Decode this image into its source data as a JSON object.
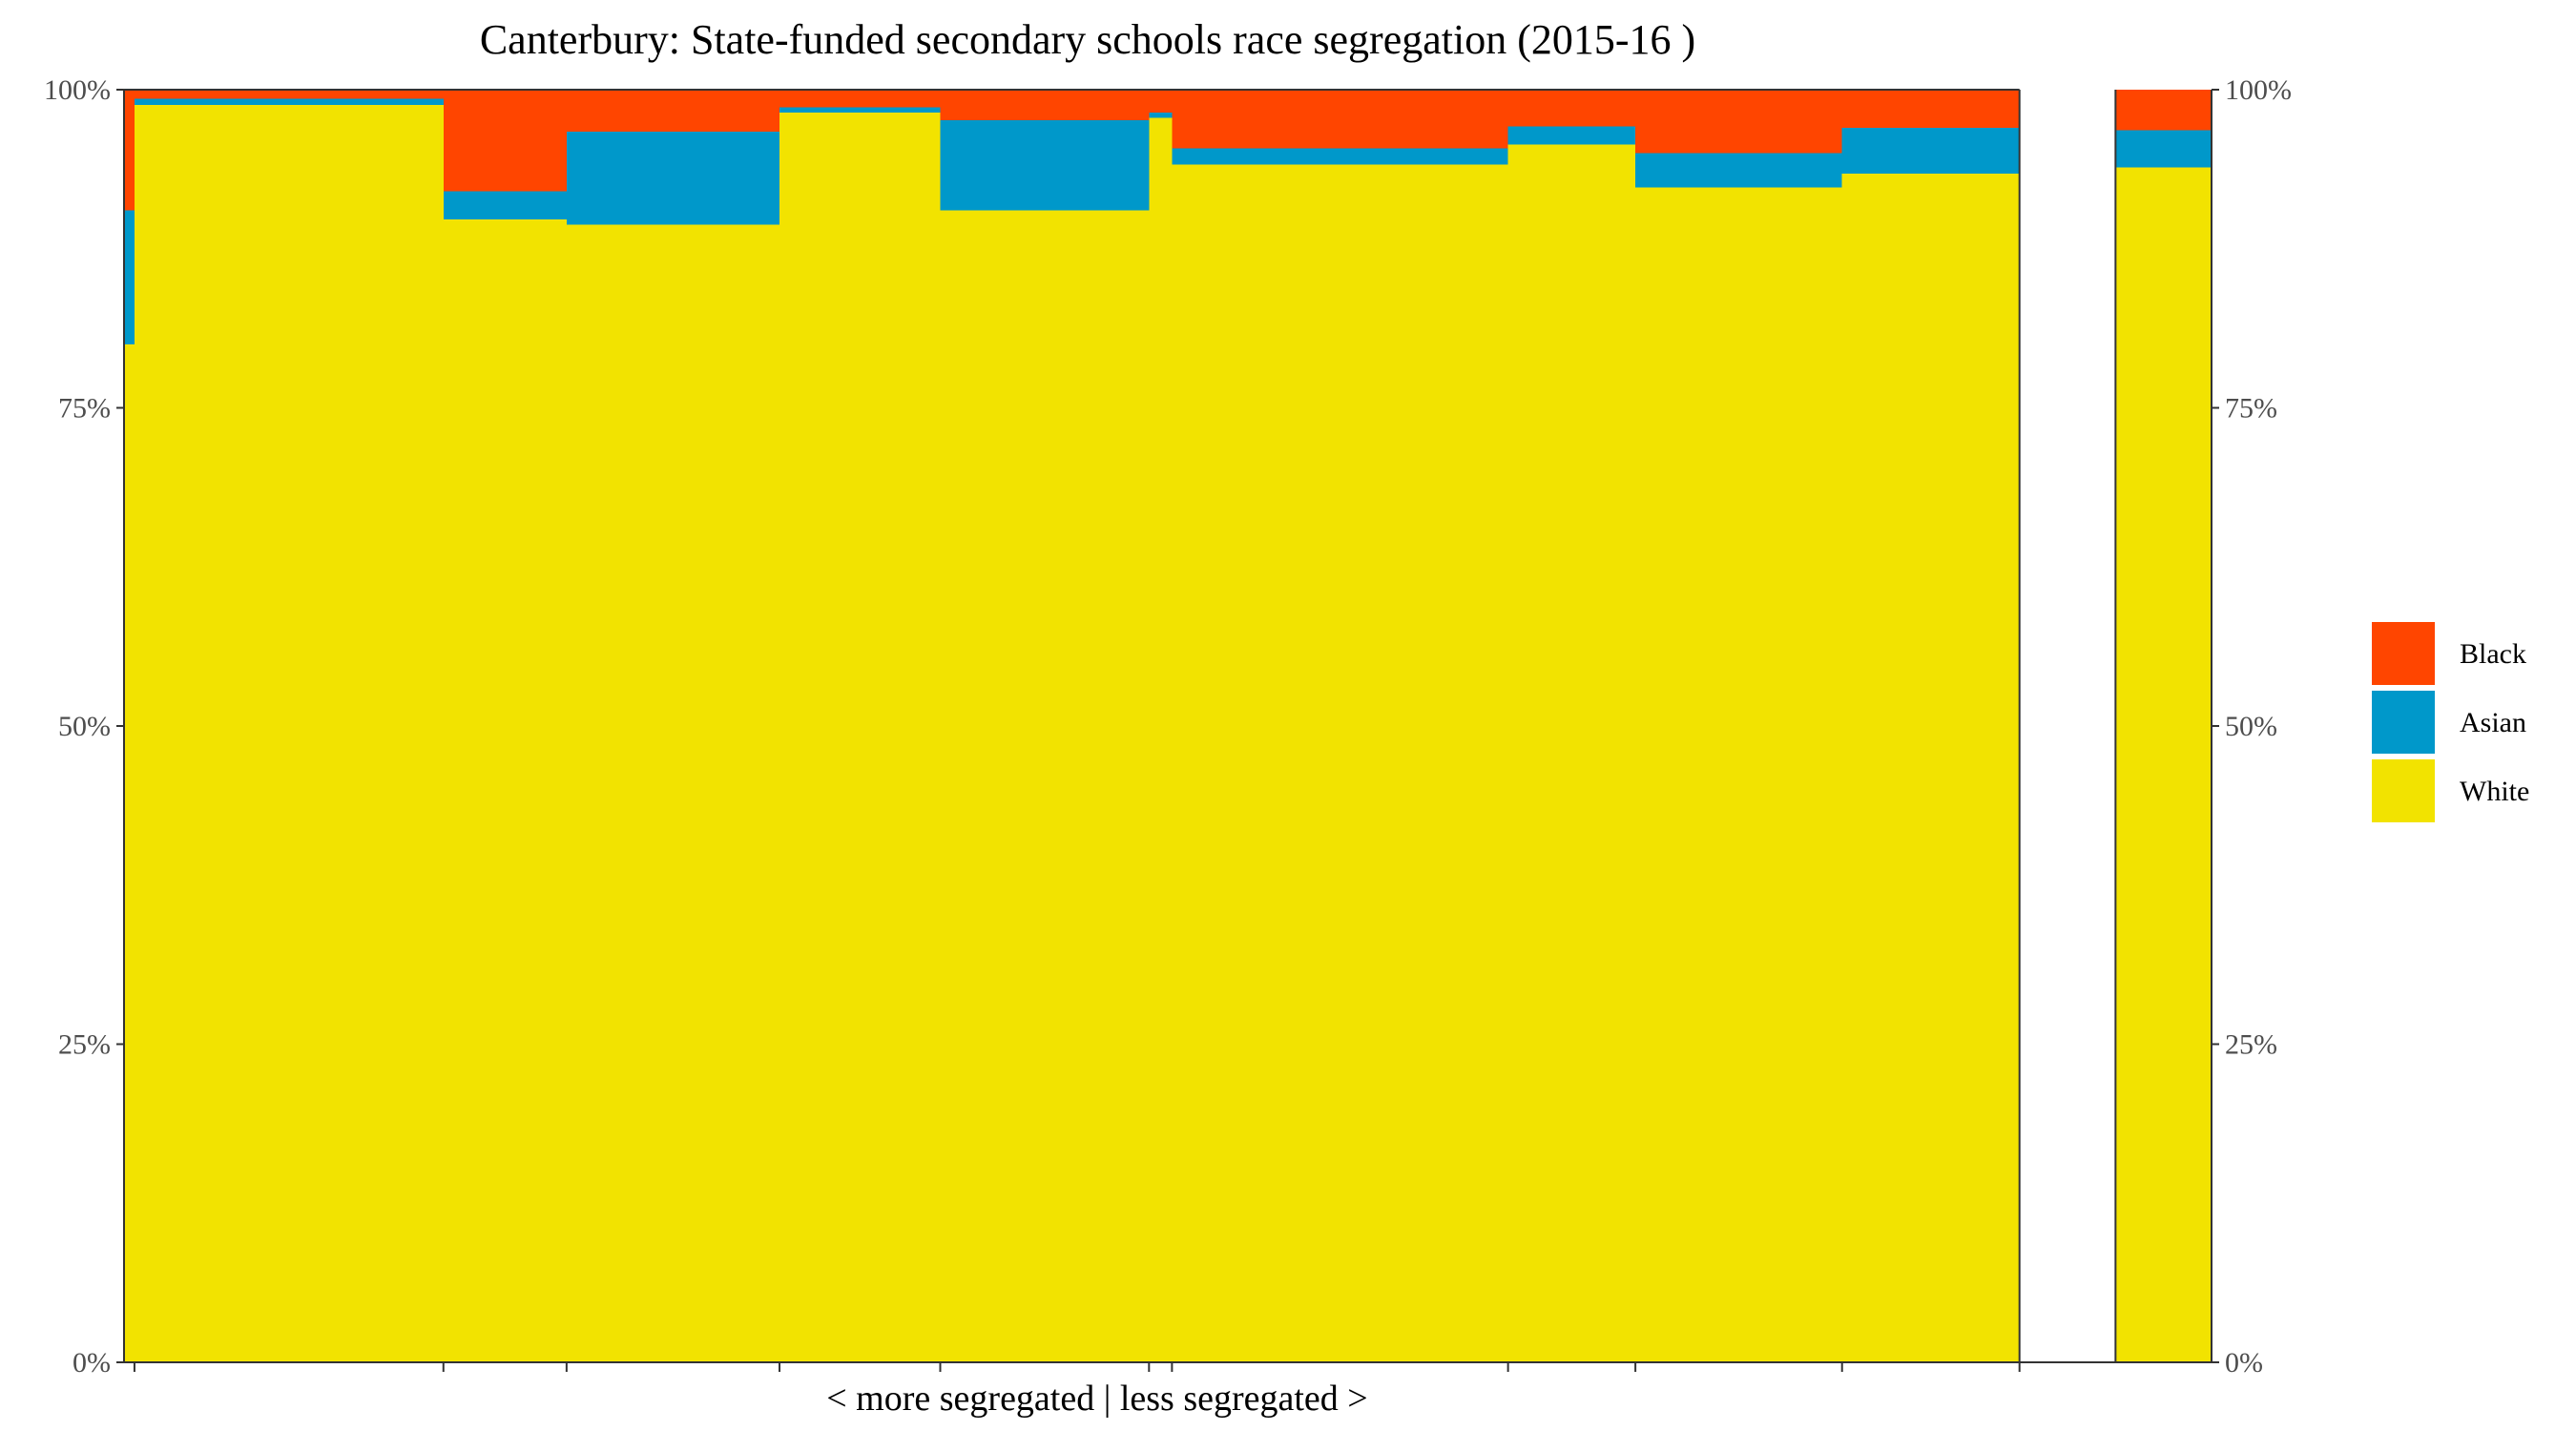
{
  "chart_data": {
    "type": "bar",
    "title": "Canterbury: State-funded secondary schools race segregation (2015-16 )",
    "xlabel": "< more segregated | less segregated >",
    "ylabel": "",
    "ylim": [
      0,
      1
    ],
    "yticks": [
      {
        "value": 0,
        "label": "0%"
      },
      {
        "value": 0.25,
        "label": "25%"
      },
      {
        "value": 0.5,
        "label": "50%"
      },
      {
        "value": 0.75,
        "label": "75%"
      },
      {
        "value": 1,
        "label": "100%"
      }
    ],
    "stack_order_bottom_to_top": [
      "White",
      "Asian",
      "Black"
    ],
    "series_colors": {
      "White": "#F2E300",
      "Asian": "#0098CA",
      "Black": "#FF4500"
    },
    "legend": [
      {
        "name": "Black",
        "color": "#FF4500"
      },
      {
        "name": "Asian",
        "color": "#0098CA"
      },
      {
        "name": "White",
        "color": "#F2E300"
      }
    ],
    "legend_position": "right",
    "grid": false,
    "x_axis": {
      "min": 0,
      "max": 1,
      "schools_end": 0.908
    },
    "schools": [
      {
        "x0": 0.0,
        "x1": 0.005,
        "White": 0.8,
        "Asian": 0.105,
        "Black": 0.095
      },
      {
        "x0": 0.005,
        "x1": 0.153,
        "White": 0.988,
        "Asian": 0.005,
        "Black": 0.007
      },
      {
        "x0": 0.153,
        "x1": 0.212,
        "White": 0.898,
        "Asian": 0.022,
        "Black": 0.08
      },
      {
        "x0": 0.212,
        "x1": 0.314,
        "White": 0.894,
        "Asian": 0.073,
        "Black": 0.033
      },
      {
        "x0": 0.314,
        "x1": 0.391,
        "White": 0.982,
        "Asian": 0.004,
        "Black": 0.014
      },
      {
        "x0": 0.391,
        "x1": 0.491,
        "White": 0.905,
        "Asian": 0.071,
        "Black": 0.024
      },
      {
        "x0": 0.491,
        "x1": 0.502,
        "White": 0.978,
        "Asian": 0.004,
        "Black": 0.018
      },
      {
        "x0": 0.502,
        "x1": 0.663,
        "White": 0.941,
        "Asian": 0.013,
        "Black": 0.046
      },
      {
        "x0": 0.663,
        "x1": 0.724,
        "White": 0.957,
        "Asian": 0.014,
        "Black": 0.029
      },
      {
        "x0": 0.724,
        "x1": 0.823,
        "White": 0.923,
        "Asian": 0.027,
        "Black": 0.05
      },
      {
        "x0": 0.823,
        "x1": 0.908,
        "White": 0.934,
        "Asian": 0.036,
        "Black": 0.03
      }
    ],
    "overall": {
      "x0": 0.954,
      "x1": 1.0,
      "White": 0.939,
      "Asian": 0.029,
      "Black": 0.032
    },
    "x_ticks": [
      0.005,
      0.153,
      0.212,
      0.314,
      0.391,
      0.491,
      0.502,
      0.663,
      0.724,
      0.823,
      0.908
    ]
  }
}
